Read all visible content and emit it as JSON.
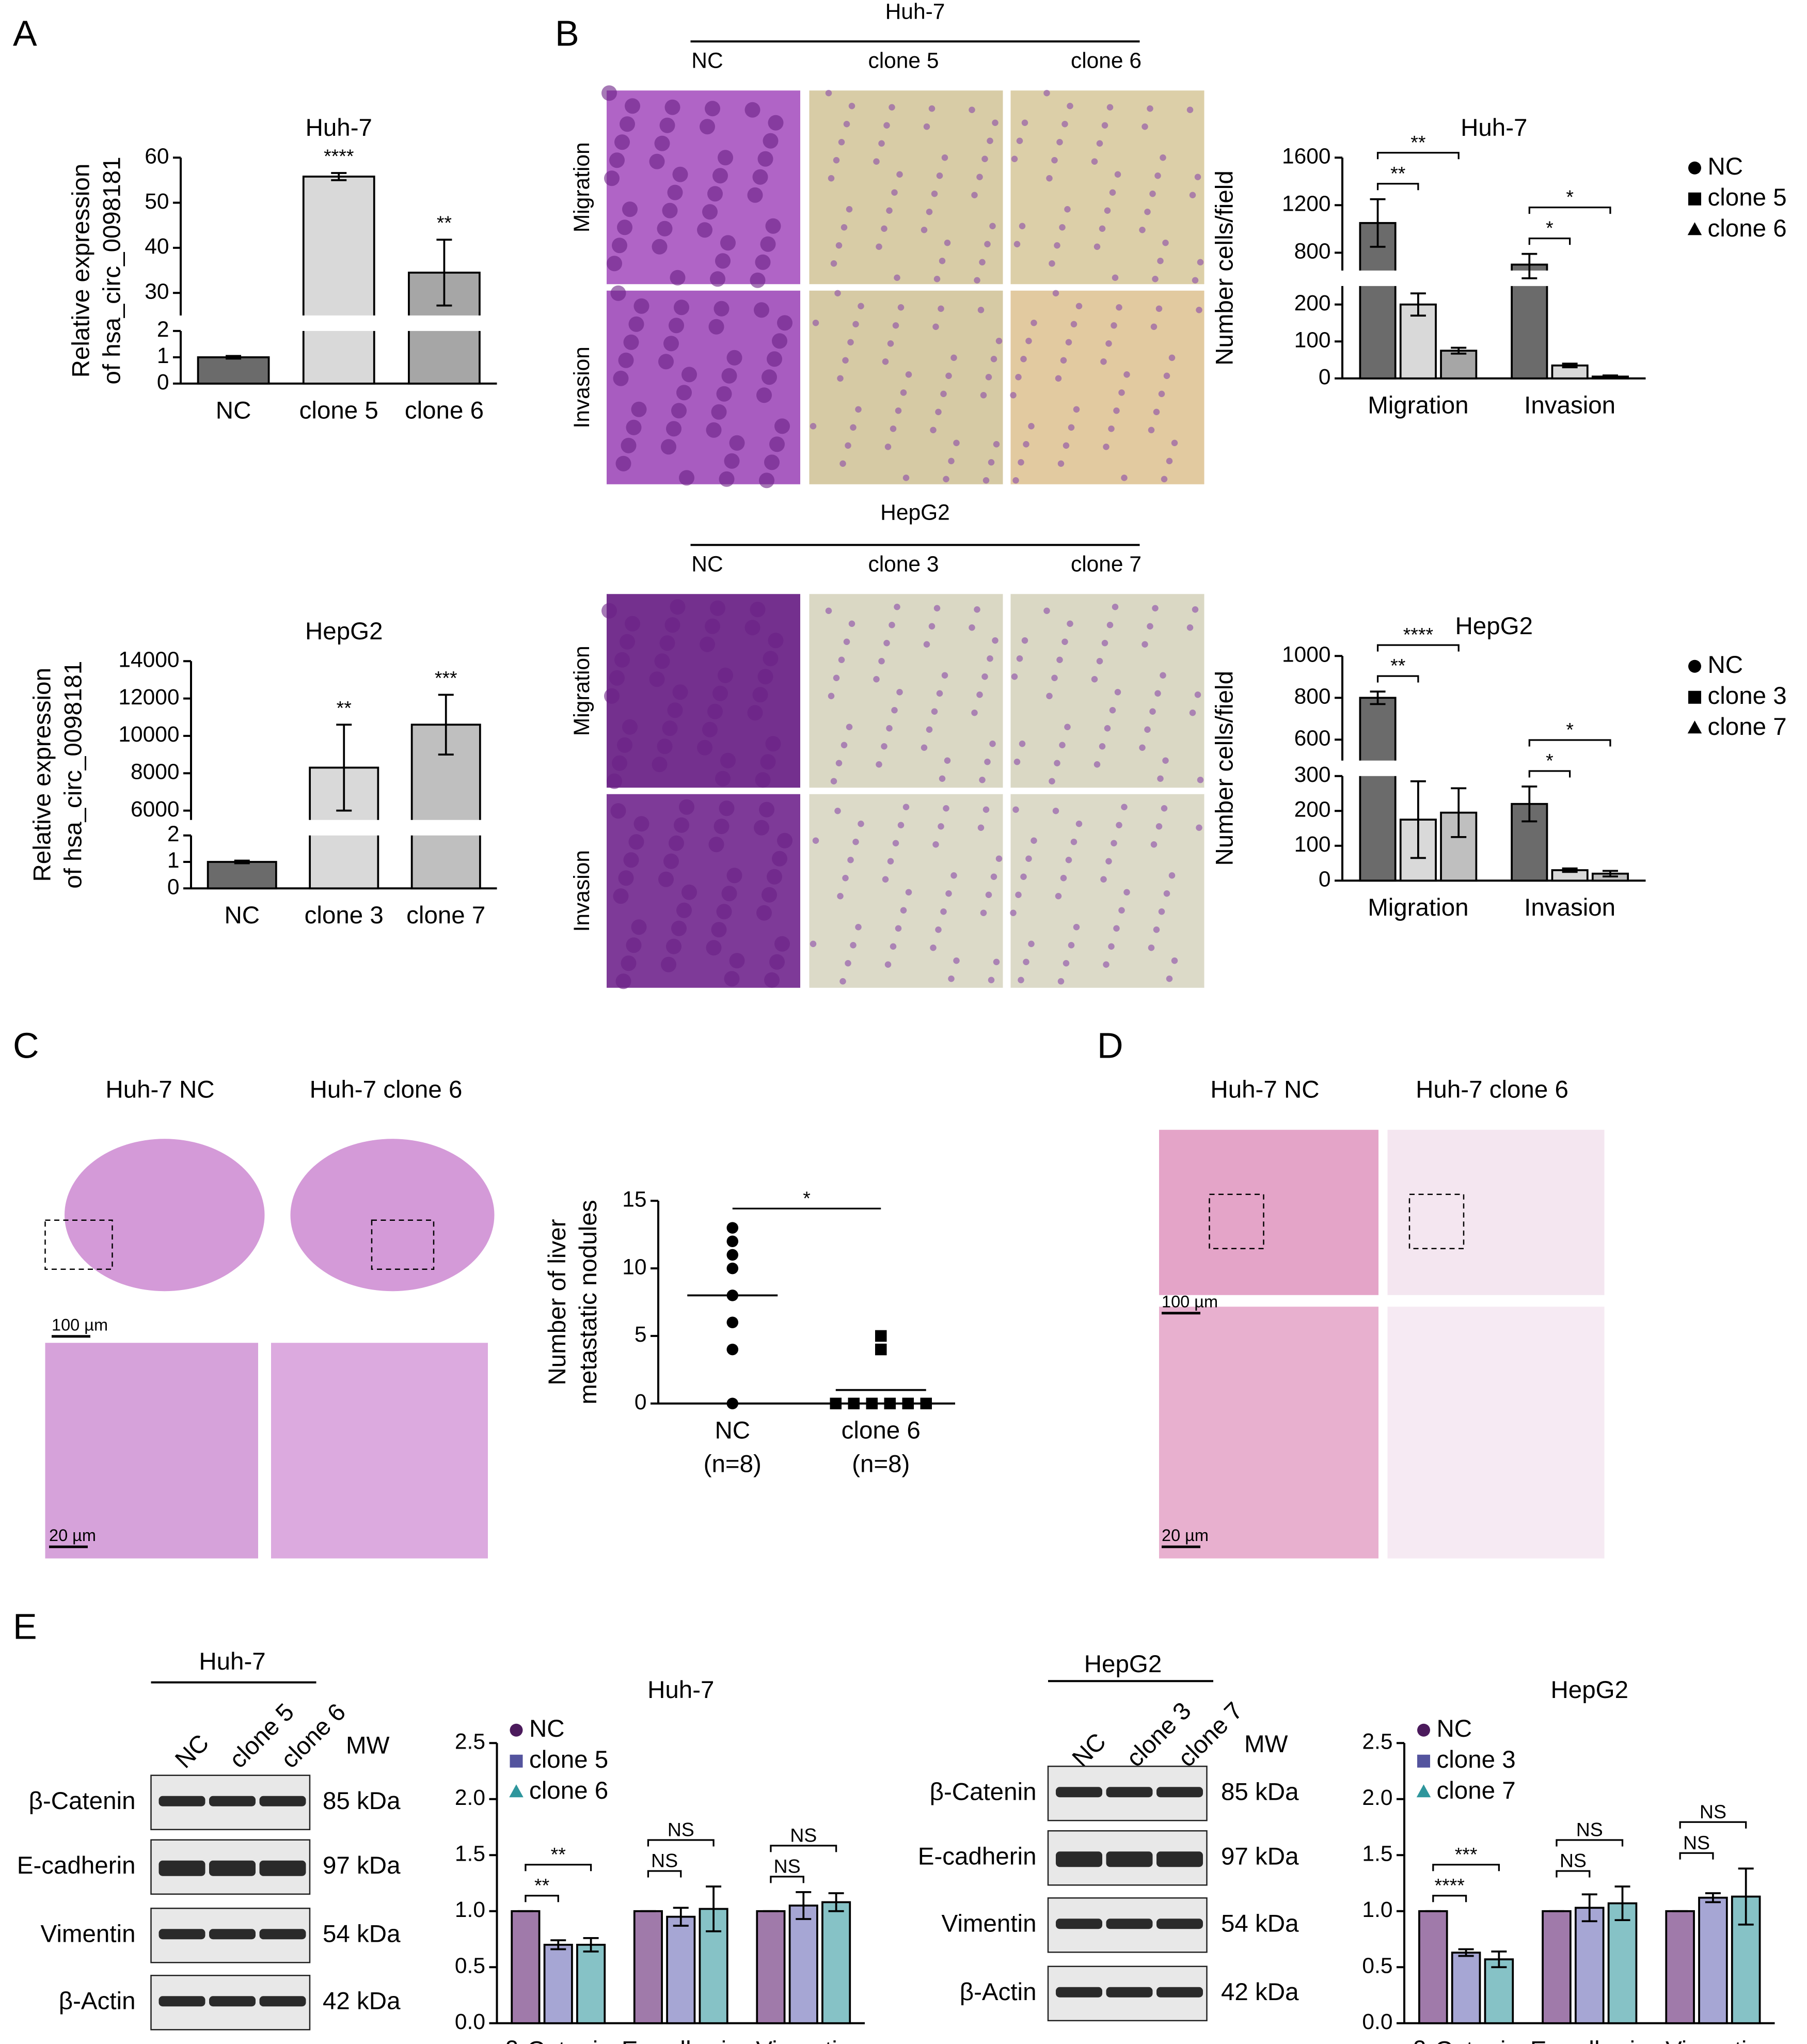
{
  "figure": {
    "panels": [
      "A",
      "B",
      "C",
      "D",
      "E"
    ],
    "transwell": [
      {
        "cell": "Huh-7",
        "columns": [
          "NC",
          "clone 5",
          "clone 6"
        ],
        "rows": [
          "Migration",
          "Invasion"
        ]
      },
      {
        "cell": "HepG2",
        "columns": [
          "NC",
          "clone 3",
          "clone 7"
        ],
        "rows": [
          "Migration",
          "Invasion"
        ]
      }
    ],
    "histology": [
      {
        "columns": [
          "Huh-7 NC",
          "Huh-7 clone 6"
        ],
        "scale_bars": [
          "100 µm",
          "20 µm"
        ]
      },
      {
        "columns": [
          "Huh-7 NC",
          "Huh-7 clone 6"
        ],
        "scale_bars": [
          "100 µm",
          "20 µm"
        ]
      }
    ],
    "blots": [
      {
        "cell": "Huh-7",
        "lanes": [
          "NC",
          "clone 5",
          "clone 6"
        ],
        "mw_header": "MW",
        "proteins": [
          "β-Catenin",
          "E-cadherin",
          "Vimentin",
          "β-Actin"
        ],
        "weights": [
          "85 kDa",
          "97 kDa",
          "54 kDa",
          "42 kDa"
        ]
      },
      {
        "cell": "HepG2",
        "lanes": [
          "NC",
          "clone 3",
          "clone 7"
        ],
        "mw_header": "MW",
        "proteins": [
          "β-Catenin",
          "E-cadherin",
          "Vimentin",
          "β-Actin"
        ],
        "weights": [
          "85 kDa",
          "97 kDa",
          "54 kDa",
          "42 kDa"
        ]
      }
    ]
  },
  "chart_data": [
    {
      "type": "bar",
      "title": "Huh-7",
      "ylabel": [
        "Relative expression",
        "of hsa_circ_0098181"
      ],
      "categories": [
        "NC",
        "clone 5",
        "clone 6"
      ],
      "values": [
        1,
        55.8,
        34.5
      ],
      "errors": [
        0.05,
        0.8,
        7.3
      ],
      "colors": [
        "#6b6b6b",
        "#d9d9d9",
        "#a6a6a6"
      ],
      "significance": [
        null,
        "****",
        "**"
      ],
      "ylim": [
        [
          0,
          2
        ],
        [
          25,
          60
        ]
      ],
      "yticks": [
        0,
        1,
        2,
        30,
        40,
        50,
        60
      ]
    },
    {
      "type": "bar",
      "title": "HepG2",
      "ylabel": [
        "Relative expression",
        "of hsa_circ_0098181"
      ],
      "categories": [
        "NC",
        "clone 3",
        "clone 7"
      ],
      "values": [
        1,
        8300,
        10600
      ],
      "errors": [
        0.05,
        2300,
        1600
      ],
      "colors": [
        "#6b6b6b",
        "#d9d9d9",
        "#bfbfbf"
      ],
      "significance": [
        null,
        "**",
        "***"
      ],
      "ylim": [
        [
          0,
          2
        ],
        [
          5500,
          14000
        ]
      ],
      "yticks": [
        0,
        1,
        2,
        6000,
        8000,
        10000,
        12000,
        14000
      ]
    },
    {
      "type": "bar",
      "title": "Huh-7",
      "ylabel": [
        "Number cells/field"
      ],
      "legend": "right",
      "categories": [
        "Migration",
        "Invasion"
      ],
      "series": [
        {
          "name": "NC",
          "color": "#6b6b6b",
          "marker": "circle",
          "marker_color": "#000000",
          "values": [
            1050,
            700
          ],
          "errors": [
            200,
            90
          ]
        },
        {
          "name": "clone 5",
          "color": "#d9d9d9",
          "marker": "square",
          "marker_color": "#000000",
          "values": [
            200,
            35
          ],
          "errors": [
            30,
            5
          ],
          "significance": [
            "**",
            "*"
          ]
        },
        {
          "name": "clone 6",
          "color": "#a6a6a6",
          "marker": "triangle",
          "marker_color": "#000000",
          "values": [
            75,
            5
          ],
          "errors": [
            8,
            3
          ],
          "significance": [
            "**",
            "*"
          ]
        }
      ],
      "ylim": [
        [
          0,
          250
        ],
        [
          650,
          1600
        ]
      ],
      "yticks": [
        0,
        100,
        200,
        800,
        1200,
        1600
      ]
    },
    {
      "type": "bar",
      "title": "HepG2",
      "ylabel": [
        "Number cells/field"
      ],
      "legend": "right",
      "categories": [
        "Migration",
        "Invasion"
      ],
      "series": [
        {
          "name": "NC",
          "color": "#6b6b6b",
          "marker": "circle",
          "marker_color": "#000000",
          "values": [
            800,
            220
          ],
          "errors": [
            30,
            50
          ]
        },
        {
          "name": "clone 3",
          "color": "#d9d9d9",
          "marker": "square",
          "marker_color": "#000000",
          "values": [
            175,
            30
          ],
          "errors": [
            110,
            5
          ],
          "significance": [
            "**",
            "*"
          ]
        },
        {
          "name": "clone 7",
          "color": "#bfbfbf",
          "marker": "triangle",
          "marker_color": "#000000",
          "values": [
            195,
            20
          ],
          "errors": [
            70,
            8
          ],
          "significance": [
            "****",
            "*"
          ]
        }
      ],
      "ylim": [
        [
          0,
          300
        ],
        [
          500,
          1000
        ]
      ],
      "yticks": [
        0,
        100,
        200,
        300,
        600,
        800,
        1000
      ]
    },
    {
      "type": "strip",
      "ylabel": [
        "Number of liver",
        "metastatic nodules"
      ],
      "categories": [
        "NC",
        "clone 6"
      ],
      "category_notes": [
        "(n=8)",
        "(n=8)"
      ],
      "points": [
        [
          13,
          12,
          11,
          10,
          8,
          6,
          4,
          0
        ],
        [
          5,
          4,
          0,
          0,
          0,
          0,
          0,
          0
        ]
      ],
      "means": [
        8,
        1
      ],
      "markers": [
        "circle",
        "square"
      ],
      "color": "#000000",
      "significance": "*",
      "ylim": [
        0,
        15
      ],
      "yticks": [
        0,
        5,
        10,
        15
      ]
    },
    {
      "type": "bar",
      "title": "Huh-7",
      "legend": "upper left",
      "categories": [
        "β-Catenin",
        "E-cadherin",
        "Vimentin"
      ],
      "series": [
        {
          "name": "NC",
          "color": "#a07aaa",
          "marker": "circle",
          "marker_color": "#4b1a5c",
          "values": [
            1,
            1,
            1
          ],
          "errors": [
            0,
            0,
            0
          ]
        },
        {
          "name": "clone 5",
          "color": "#a6a6d4",
          "marker": "square",
          "marker_color": "#54549e",
          "values": [
            0.7,
            0.95,
            1.05
          ],
          "errors": [
            0.04,
            0.08,
            0.12
          ],
          "significance": [
            "**",
            "NS",
            "NS"
          ]
        },
        {
          "name": "clone 6",
          "color": "#86c2c6",
          "marker": "triangle",
          "marker_color": "#2e969c",
          "values": [
            0.7,
            1.02,
            1.08
          ],
          "errors": [
            0.06,
            0.2,
            0.08
          ],
          "significance": [
            "**",
            "NS",
            "NS"
          ]
        }
      ],
      "ylim": [
        0,
        2.5
      ],
      "yticks": [
        {
          "value": 0,
          "label": "0.0"
        },
        0.5,
        {
          "value": 1,
          "label": "1.0"
        },
        1.5,
        {
          "value": 2,
          "label": "2.0"
        },
        2.5
      ]
    },
    {
      "type": "bar",
      "title": "HepG2",
      "legend": "upper left",
      "categories": [
        "β-Catenin",
        "E-cadherin",
        "Vimentin"
      ],
      "series": [
        {
          "name": "NC",
          "color": "#a07aaa",
          "marker": "circle",
          "marker_color": "#4b1a5c",
          "values": [
            1,
            1,
            1
          ],
          "errors": [
            0,
            0,
            0
          ]
        },
        {
          "name": "clone 3",
          "color": "#a6a6d4",
          "marker": "square",
          "marker_color": "#54549e",
          "values": [
            0.63,
            1.03,
            1.12
          ],
          "errors": [
            0.03,
            0.12,
            0.04
          ],
          "significance": [
            "****",
            "NS",
            "NS"
          ]
        },
        {
          "name": "clone 7",
          "color": "#86c2c6",
          "marker": "triangle",
          "marker_color": "#2e969c",
          "values": [
            0.57,
            1.07,
            1.13
          ],
          "errors": [
            0.07,
            0.15,
            0.25
          ],
          "significance": [
            "***",
            "NS",
            "NS"
          ]
        }
      ],
      "ylim": [
        0,
        2.5
      ],
      "yticks": [
        {
          "value": 0,
          "label": "0.0"
        },
        0.5,
        {
          "value": 1,
          "label": "1.0"
        },
        1.5,
        {
          "value": 2,
          "label": "2.0"
        },
        2.5
      ]
    }
  ]
}
